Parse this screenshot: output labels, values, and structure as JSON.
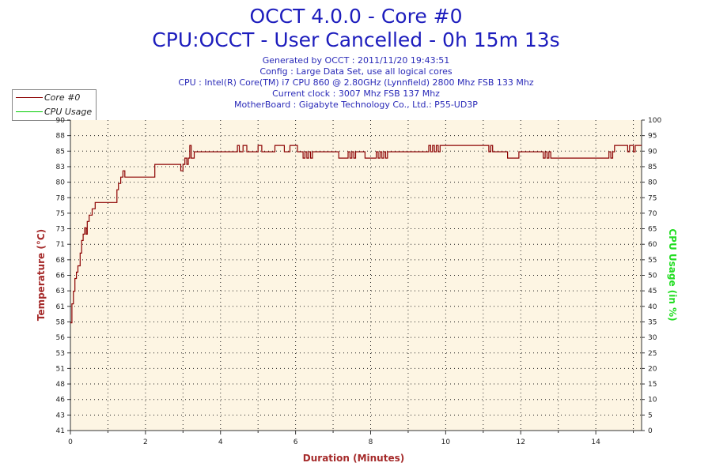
{
  "chart_data": {
    "type": "line",
    "title": "OCCT 4.0.0 - Core #0",
    "subtitle": "CPU:OCCT - User Cancelled - 0h 15m 13s",
    "info_lines": [
      "Generated by OCCT : 2011/11/20 19:43:51",
      "Config : Large Data Set, use all logical cores",
      "CPU : Intel(R) Core(TM) i7 CPU 860 @ 2.80GHz (Lynnfield) 2800 Mhz FSB 133 Mhz",
      "Current clock : 3007 Mhz FSB 137 Mhz",
      "MotherBoard : Gigabyte Technology Co., Ltd.: P55-UD3P"
    ],
    "xlabel": "Duration (Minutes)",
    "ylabel": "Temperature (°C)",
    "y2label": "CPU Usage (in %)",
    "xlim": [
      0,
      15.22
    ],
    "ylim": [
      41,
      90
    ],
    "y2lim": [
      0,
      100
    ],
    "x_ticks": [
      "0",
      "2",
      "4",
      "6",
      "8",
      "10",
      "12",
      "14"
    ],
    "y_ticks": [
      "41",
      "43",
      "46",
      "48",
      "51",
      "53",
      "56",
      "58",
      "61",
      "63",
      "66",
      "68",
      "71",
      "73",
      "75",
      "78",
      "80",
      "83",
      "85",
      "88",
      "90"
    ],
    "y2_ticks": [
      "0",
      "5",
      "10",
      "15",
      "20",
      "25",
      "30",
      "35",
      "40",
      "45",
      "50",
      "55",
      "60",
      "65",
      "70",
      "75",
      "80",
      "85",
      "90",
      "95",
      "100"
    ],
    "grid": true,
    "legend_position": "top-left",
    "colors": {
      "core": "#8b0000",
      "usage": "#00cc00",
      "plot_bg": "#fdf5e3",
      "title": "#1d1dbd",
      "left_axis": "#a52a2a",
      "right_axis": "#22dd22"
    },
    "series": [
      {
        "name": "Core #0",
        "points": [
          [
            0,
            58
          ],
          [
            0.04,
            61
          ],
          [
            0.08,
            63
          ],
          [
            0.12,
            65
          ],
          [
            0.16,
            66
          ],
          [
            0.2,
            67
          ],
          [
            0.24,
            67
          ],
          [
            0.26,
            69
          ],
          [
            0.3,
            71
          ],
          [
            0.34,
            72
          ],
          [
            0.38,
            73
          ],
          [
            0.42,
            72
          ],
          [
            0.45,
            74
          ],
          [
            0.5,
            75
          ],
          [
            0.58,
            76
          ],
          [
            0.66,
            77
          ],
          [
            0.9,
            77
          ],
          [
            1.2,
            77
          ],
          [
            1.24,
            79
          ],
          [
            1.28,
            80
          ],
          [
            1.34,
            81
          ],
          [
            1.4,
            82
          ],
          [
            1.45,
            81
          ],
          [
            1.5,
            81
          ],
          [
            2.0,
            81
          ],
          [
            2.2,
            81
          ],
          [
            2.25,
            83
          ],
          [
            2.5,
            83
          ],
          [
            2.9,
            83
          ],
          [
            2.94,
            82
          ],
          [
            3.0,
            83
          ],
          [
            3.05,
            84
          ],
          [
            3.1,
            83
          ],
          [
            3.14,
            84
          ],
          [
            3.18,
            86
          ],
          [
            3.22,
            84
          ],
          [
            3.3,
            85
          ],
          [
            3.6,
            85
          ],
          [
            4.4,
            85
          ],
          [
            4.45,
            86
          ],
          [
            4.5,
            85
          ],
          [
            4.6,
            86
          ],
          [
            4.7,
            85
          ],
          [
            4.95,
            85
          ],
          [
            5.0,
            86
          ],
          [
            5.1,
            85
          ],
          [
            5.4,
            85
          ],
          [
            5.45,
            86
          ],
          [
            5.65,
            86
          ],
          [
            5.7,
            85
          ],
          [
            5.8,
            85
          ],
          [
            5.85,
            86
          ],
          [
            6.0,
            86
          ],
          [
            6.05,
            85
          ],
          [
            6.15,
            85
          ],
          [
            6.2,
            84
          ],
          [
            6.25,
            85
          ],
          [
            6.3,
            84
          ],
          [
            6.35,
            85
          ],
          [
            6.4,
            84
          ],
          [
            6.45,
            85
          ],
          [
            7.1,
            85
          ],
          [
            7.15,
            84
          ],
          [
            7.35,
            84
          ],
          [
            7.4,
            85
          ],
          [
            7.45,
            84
          ],
          [
            7.5,
            85
          ],
          [
            7.55,
            84
          ],
          [
            7.6,
            85
          ],
          [
            7.8,
            85
          ],
          [
            7.85,
            84
          ],
          [
            8.1,
            84
          ],
          [
            8.15,
            85
          ],
          [
            8.2,
            84
          ],
          [
            8.25,
            85
          ],
          [
            8.3,
            84
          ],
          [
            8.35,
            85
          ],
          [
            8.4,
            84
          ],
          [
            8.45,
            85
          ],
          [
            9.5,
            85
          ],
          [
            9.55,
            86
          ],
          [
            9.6,
            85
          ],
          [
            9.65,
            86
          ],
          [
            9.7,
            85
          ],
          [
            9.75,
            86
          ],
          [
            9.8,
            85
          ],
          [
            9.85,
            86
          ],
          [
            10.0,
            86
          ],
          [
            11.1,
            86
          ],
          [
            11.15,
            85
          ],
          [
            11.2,
            86
          ],
          [
            11.25,
            85
          ],
          [
            11.6,
            85
          ],
          [
            11.65,
            84
          ],
          [
            11.9,
            84
          ],
          [
            11.95,
            85
          ],
          [
            12.5,
            85
          ],
          [
            12.6,
            84
          ],
          [
            12.65,
            85
          ],
          [
            12.7,
            84
          ],
          [
            12.75,
            85
          ],
          [
            12.8,
            84
          ],
          [
            13.0,
            84
          ],
          [
            14.3,
            84
          ],
          [
            14.35,
            85
          ],
          [
            14.4,
            84
          ],
          [
            14.45,
            85
          ],
          [
            14.5,
            86
          ],
          [
            14.8,
            86
          ],
          [
            14.85,
            85
          ],
          [
            14.9,
            86
          ],
          [
            15.0,
            85
          ],
          [
            15.05,
            86
          ],
          [
            15.22,
            86
          ]
        ]
      },
      {
        "name": "CPU Usage",
        "points": []
      }
    ]
  }
}
